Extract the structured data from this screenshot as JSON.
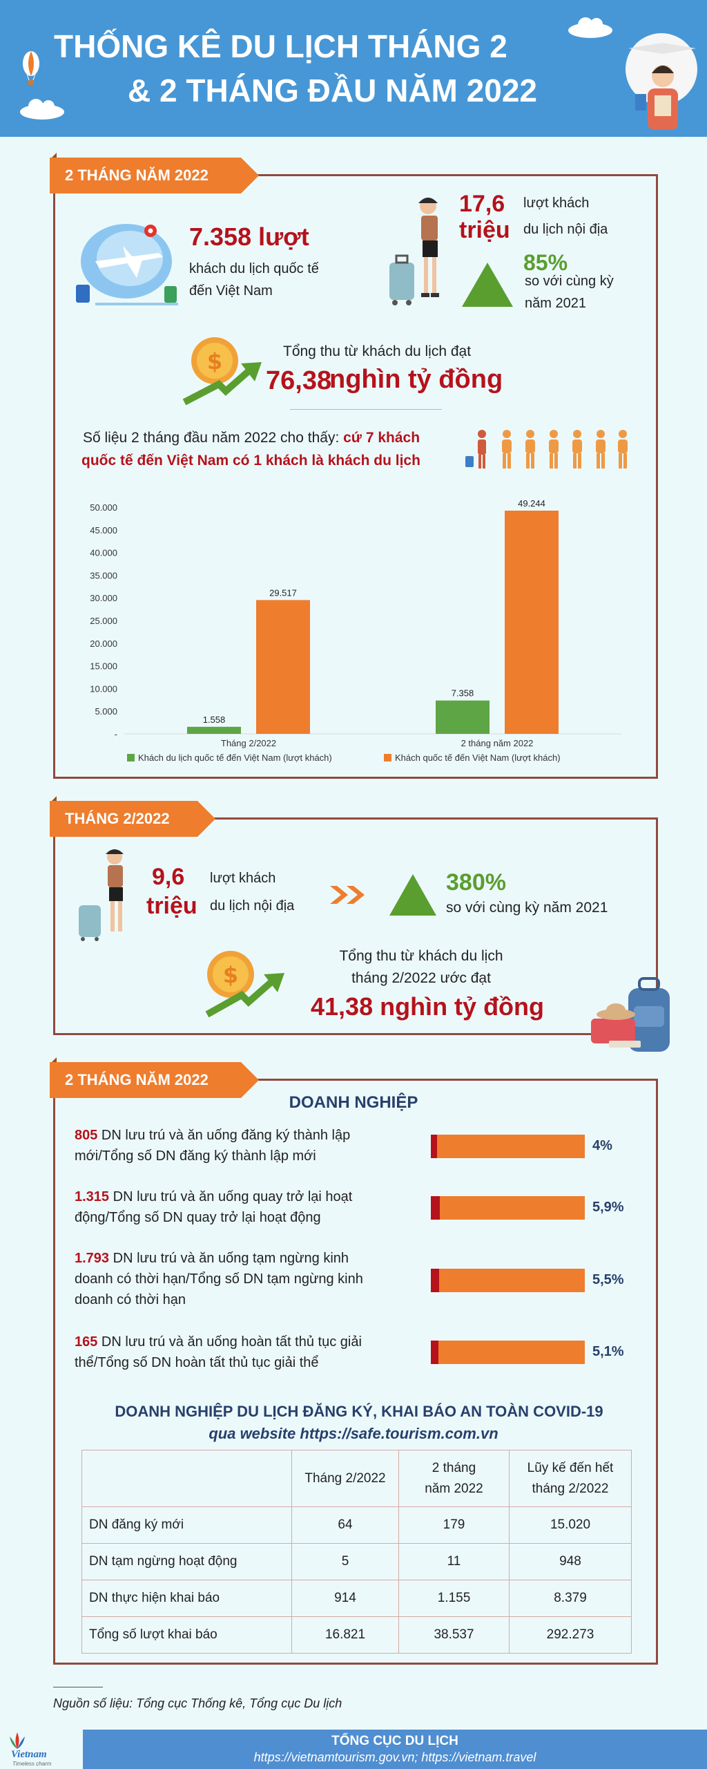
{
  "header": {
    "title_line1": "THỐNG KÊ DU LỊCH THÁNG 2",
    "title_line2": "& 2 THÁNG ĐẦU NĂM 2022"
  },
  "section1": {
    "ribbon": "2 THÁNG NĂM 2022",
    "intl_visitors_value": "7.358 lượt",
    "intl_visitors_desc_line1": "khách du lịch quốc tế",
    "intl_visitors_desc_line2": "đến Việt Nam",
    "domestic_value_line1": "17,6",
    "domestic_value_line2": "triệu",
    "domestic_desc_line1": "lượt khách",
    "domestic_desc_line2": "du lịch nội địa",
    "growth_value": "85%",
    "growth_desc_line1": "so với cùng kỳ",
    "growth_desc_line2": "năm 2021",
    "revenue_label": "Tổng thu từ khách du lịch đạt",
    "revenue_number": "76,38",
    "revenue_unit": "nghìn tỷ đồng",
    "ratio_text_plain": "Số liệu 2 tháng đầu năm 2022 cho thấy: ",
    "ratio_text_highlight1": "cứ 7 khách",
    "ratio_text_highlight2": "quốc tế đến Việt Nam có 1 khách là khách du lịch"
  },
  "chart_data": {
    "type": "bar",
    "categories": [
      "Tháng 2/2022",
      "2 tháng năm 2022"
    ],
    "series": [
      {
        "name": "Khách du lịch quốc tế đến Việt Nam (lượt khách)",
        "values": [
          1558,
          7358
        ],
        "labels": [
          "1.558",
          "7.358"
        ],
        "color": "#5ea545"
      },
      {
        "name": "Khách quốc tế đến Việt Nam (lượt khách)",
        "values": [
          29517,
          49244
        ],
        "labels": [
          "29.517",
          "49.244"
        ],
        "color": "#ee7d2e"
      }
    ],
    "yticks": [
      0,
      5000,
      10000,
      15000,
      20000,
      25000,
      30000,
      35000,
      40000,
      45000,
      50000
    ],
    "ytick_labels": [
      "-",
      "5.000",
      "10.000",
      "15.000",
      "20.000",
      "25.000",
      "30.000",
      "35.000",
      "40.000",
      "45.000",
      "50.000"
    ],
    "ylim": [
      0,
      50000
    ],
    "legend_position": "bottom",
    "grid": false
  },
  "section2": {
    "ribbon": "THÁNG 2/2022",
    "domestic_value_line1": "9,6",
    "domestic_value_line2": "triệu",
    "domestic_desc_line1": "lượt khách",
    "domestic_desc_line2": "du lịch nội địa",
    "growth_value": "380%",
    "growth_desc": "so với cùng kỳ năm 2021",
    "revenue_label_line1": "Tổng thu từ khách du lịch",
    "revenue_label_line2": "tháng 2/2022 ước đạt",
    "revenue_value": "41,38 nghìn tỷ đồng"
  },
  "section3": {
    "ribbon": "2 THÁNG NĂM 2022",
    "heading": "DOANH NGHIỆP",
    "items": [
      {
        "num": "805",
        "line1": " DN lưu trú và ăn uống đăng ký thành lập",
        "line2": "mới/Tổng số DN đăng ký thành lập mới",
        "line3": "",
        "pct": "4%",
        "fraction": 0.04
      },
      {
        "num": "1.315",
        "line1": " DN lưu trú và ăn uống quay trở lại hoạt",
        "line2": "động/Tổng số DN quay trở lại hoạt động",
        "line3": "",
        "pct": "5,9%",
        "fraction": 0.059
      },
      {
        "num": "1.793",
        "line1": " DN lưu trú và ăn uống tạm ngừng kinh",
        "line2": "doanh có thời hạn/Tổng số DN tạm ngừng kinh",
        "line3": "doanh có thời hạn",
        "pct": "5,5%",
        "fraction": 0.055
      },
      {
        "num": "165",
        "line1": " DN lưu trú và ăn uống hoàn tất thủ tục giải",
        "line2": "thể/Tổng số DN hoàn tất thủ tục giải thể",
        "line3": "",
        "pct": "5,1%",
        "fraction": 0.051
      }
    ],
    "covid_heading": "DOANH NGHIỆP DU LỊCH ĐĂNG KÝ, KHAI BÁO AN TOÀN COVID-19",
    "covid_subheading": "qua website https://safe.tourism.com.vn",
    "table": {
      "headers": [
        "",
        "Tháng 2/2022",
        "2 tháng\nnăm 2022",
        "Lũy kế đến hết\ntháng 2/2022"
      ],
      "rows": [
        [
          "DN đăng ký mới",
          "64",
          "179",
          "15.020"
        ],
        [
          "DN tạm ngừng hoạt động",
          "5",
          "11",
          "948"
        ],
        [
          "DN thực hiện khai báo",
          "914",
          "1.155",
          "8.379"
        ],
        [
          "Tổng số lượt khai báo",
          "16.821",
          "38.537",
          "292.273"
        ]
      ]
    }
  },
  "source_note": "Nguồn số liệu: Tổng cục Thống kê, Tổng cục Du lịch",
  "footer": {
    "org": "TỔNG CỤC DU LỊCH",
    "links": "https://vietnamtourism.gov.vn; https://vietnam.travel",
    "logo_text": "Vietnam",
    "logo_tagline": "Timeless charm"
  }
}
